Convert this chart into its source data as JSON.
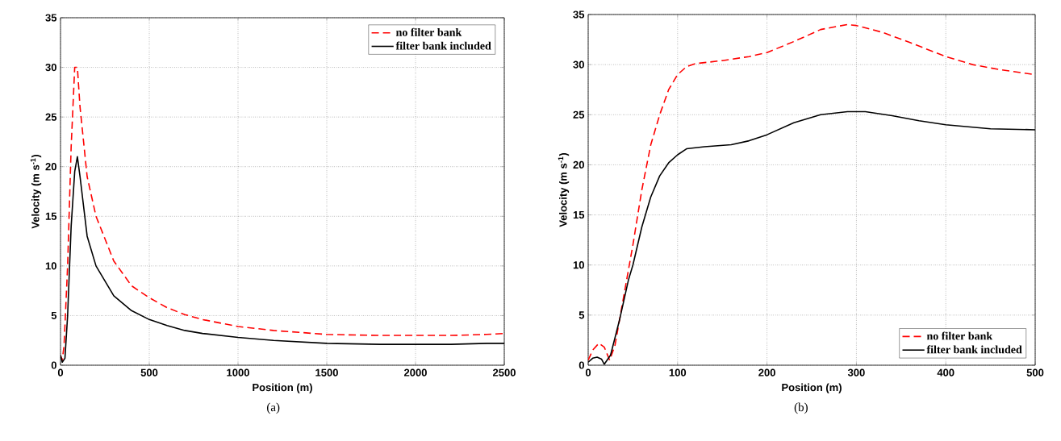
{
  "chart_data": [
    {
      "type": "line",
      "xlabel": "Position (m)",
      "ylabel": "Velocity (m s$^{-1}$)",
      "annotations": [
        "(a)"
      ],
      "xlim": [
        0,
        2500
      ],
      "ylim": [
        0,
        35
      ],
      "xticks": [
        0,
        500,
        1000,
        1500,
        2000,
        2500
      ],
      "yticks": [
        0,
        5,
        10,
        15,
        20,
        25,
        30,
        35
      ],
      "grid": true,
      "legend": "top right",
      "series": [
        {
          "name": "no filter bank",
          "color": "#ff0000",
          "line_style": "dashed",
          "x": [
            0,
            10,
            20,
            40,
            60,
            80,
            95,
            110,
            150,
            200,
            300,
            400,
            500,
            600,
            700,
            800,
            1000,
            1200,
            1500,
            1800,
            2000,
            2200,
            2400,
            2500
          ],
          "values": [
            1,
            0.5,
            2,
            10,
            22,
            30,
            30,
            26,
            19,
            15,
            10.5,
            8,
            6.8,
            5.8,
            5.1,
            4.6,
            3.9,
            3.5,
            3.1,
            3.0,
            3.0,
            3.0,
            3.1,
            3.2
          ]
        },
        {
          "name": "filter bank included",
          "color": "#000000",
          "line_style": "solid",
          "x": [
            0,
            10,
            25,
            40,
            60,
            80,
            95,
            110,
            150,
            200,
            300,
            400,
            500,
            600,
            700,
            800,
            1000,
            1200,
            1500,
            1800,
            2000,
            2200,
            2400,
            2500
          ],
          "values": [
            1,
            0.3,
            0.7,
            5,
            14,
            19.5,
            21,
            19,
            13,
            10,
            7,
            5.5,
            4.6,
            4,
            3.5,
            3.2,
            2.8,
            2.5,
            2.2,
            2.1,
            2.1,
            2.1,
            2.2,
            2.2
          ]
        }
      ]
    },
    {
      "type": "line",
      "xlabel": "Position (m)",
      "ylabel": "Velocity (m s$^{-1}$)",
      "annotations": [
        "(b)"
      ],
      "xlim": [
        0,
        500
      ],
      "ylim": [
        0,
        35
      ],
      "xticks": [
        0,
        100,
        200,
        300,
        400,
        500
      ],
      "yticks": [
        0,
        5,
        10,
        15,
        20,
        25,
        30,
        35
      ],
      "grid": true,
      "legend": "bottom right",
      "series": [
        {
          "name": "no filter bank",
          "color": "#ff0000",
          "line_style": "dashed",
          "x": [
            0,
            5,
            12,
            18,
            24,
            30,
            40,
            50,
            60,
            70,
            80,
            90,
            100,
            110,
            120,
            150,
            180,
            200,
            230,
            260,
            290,
            300,
            330,
            360,
            400,
            430,
            460,
            500
          ],
          "values": [
            0.5,
            1.5,
            2.2,
            1.8,
            0.5,
            2,
            7,
            12,
            17.5,
            22,
            25,
            27.5,
            29,
            29.8,
            30.1,
            30.4,
            30.8,
            31.2,
            32.3,
            33.5,
            34,
            33.9,
            33.2,
            32.2,
            30.8,
            30,
            29.5,
            29
          ]
        },
        {
          "name": "filter bank included",
          "color": "#000000",
          "line_style": "solid",
          "x": [
            0,
            5,
            10,
            15,
            18,
            25,
            35,
            45,
            50,
            60,
            70,
            80,
            90,
            100,
            110,
            130,
            160,
            180,
            200,
            230,
            260,
            290,
            310,
            340,
            370,
            400,
            450,
            500
          ],
          "values": [
            0.3,
            0.7,
            0.8,
            0.6,
            0.1,
            1,
            4.5,
            8.5,
            10,
            13.8,
            16.8,
            18.9,
            20.2,
            21,
            21.6,
            21.8,
            22,
            22.4,
            23,
            24.2,
            25,
            25.3,
            25.3,
            24.9,
            24.4,
            24,
            23.6,
            23.5
          ]
        }
      ]
    }
  ]
}
